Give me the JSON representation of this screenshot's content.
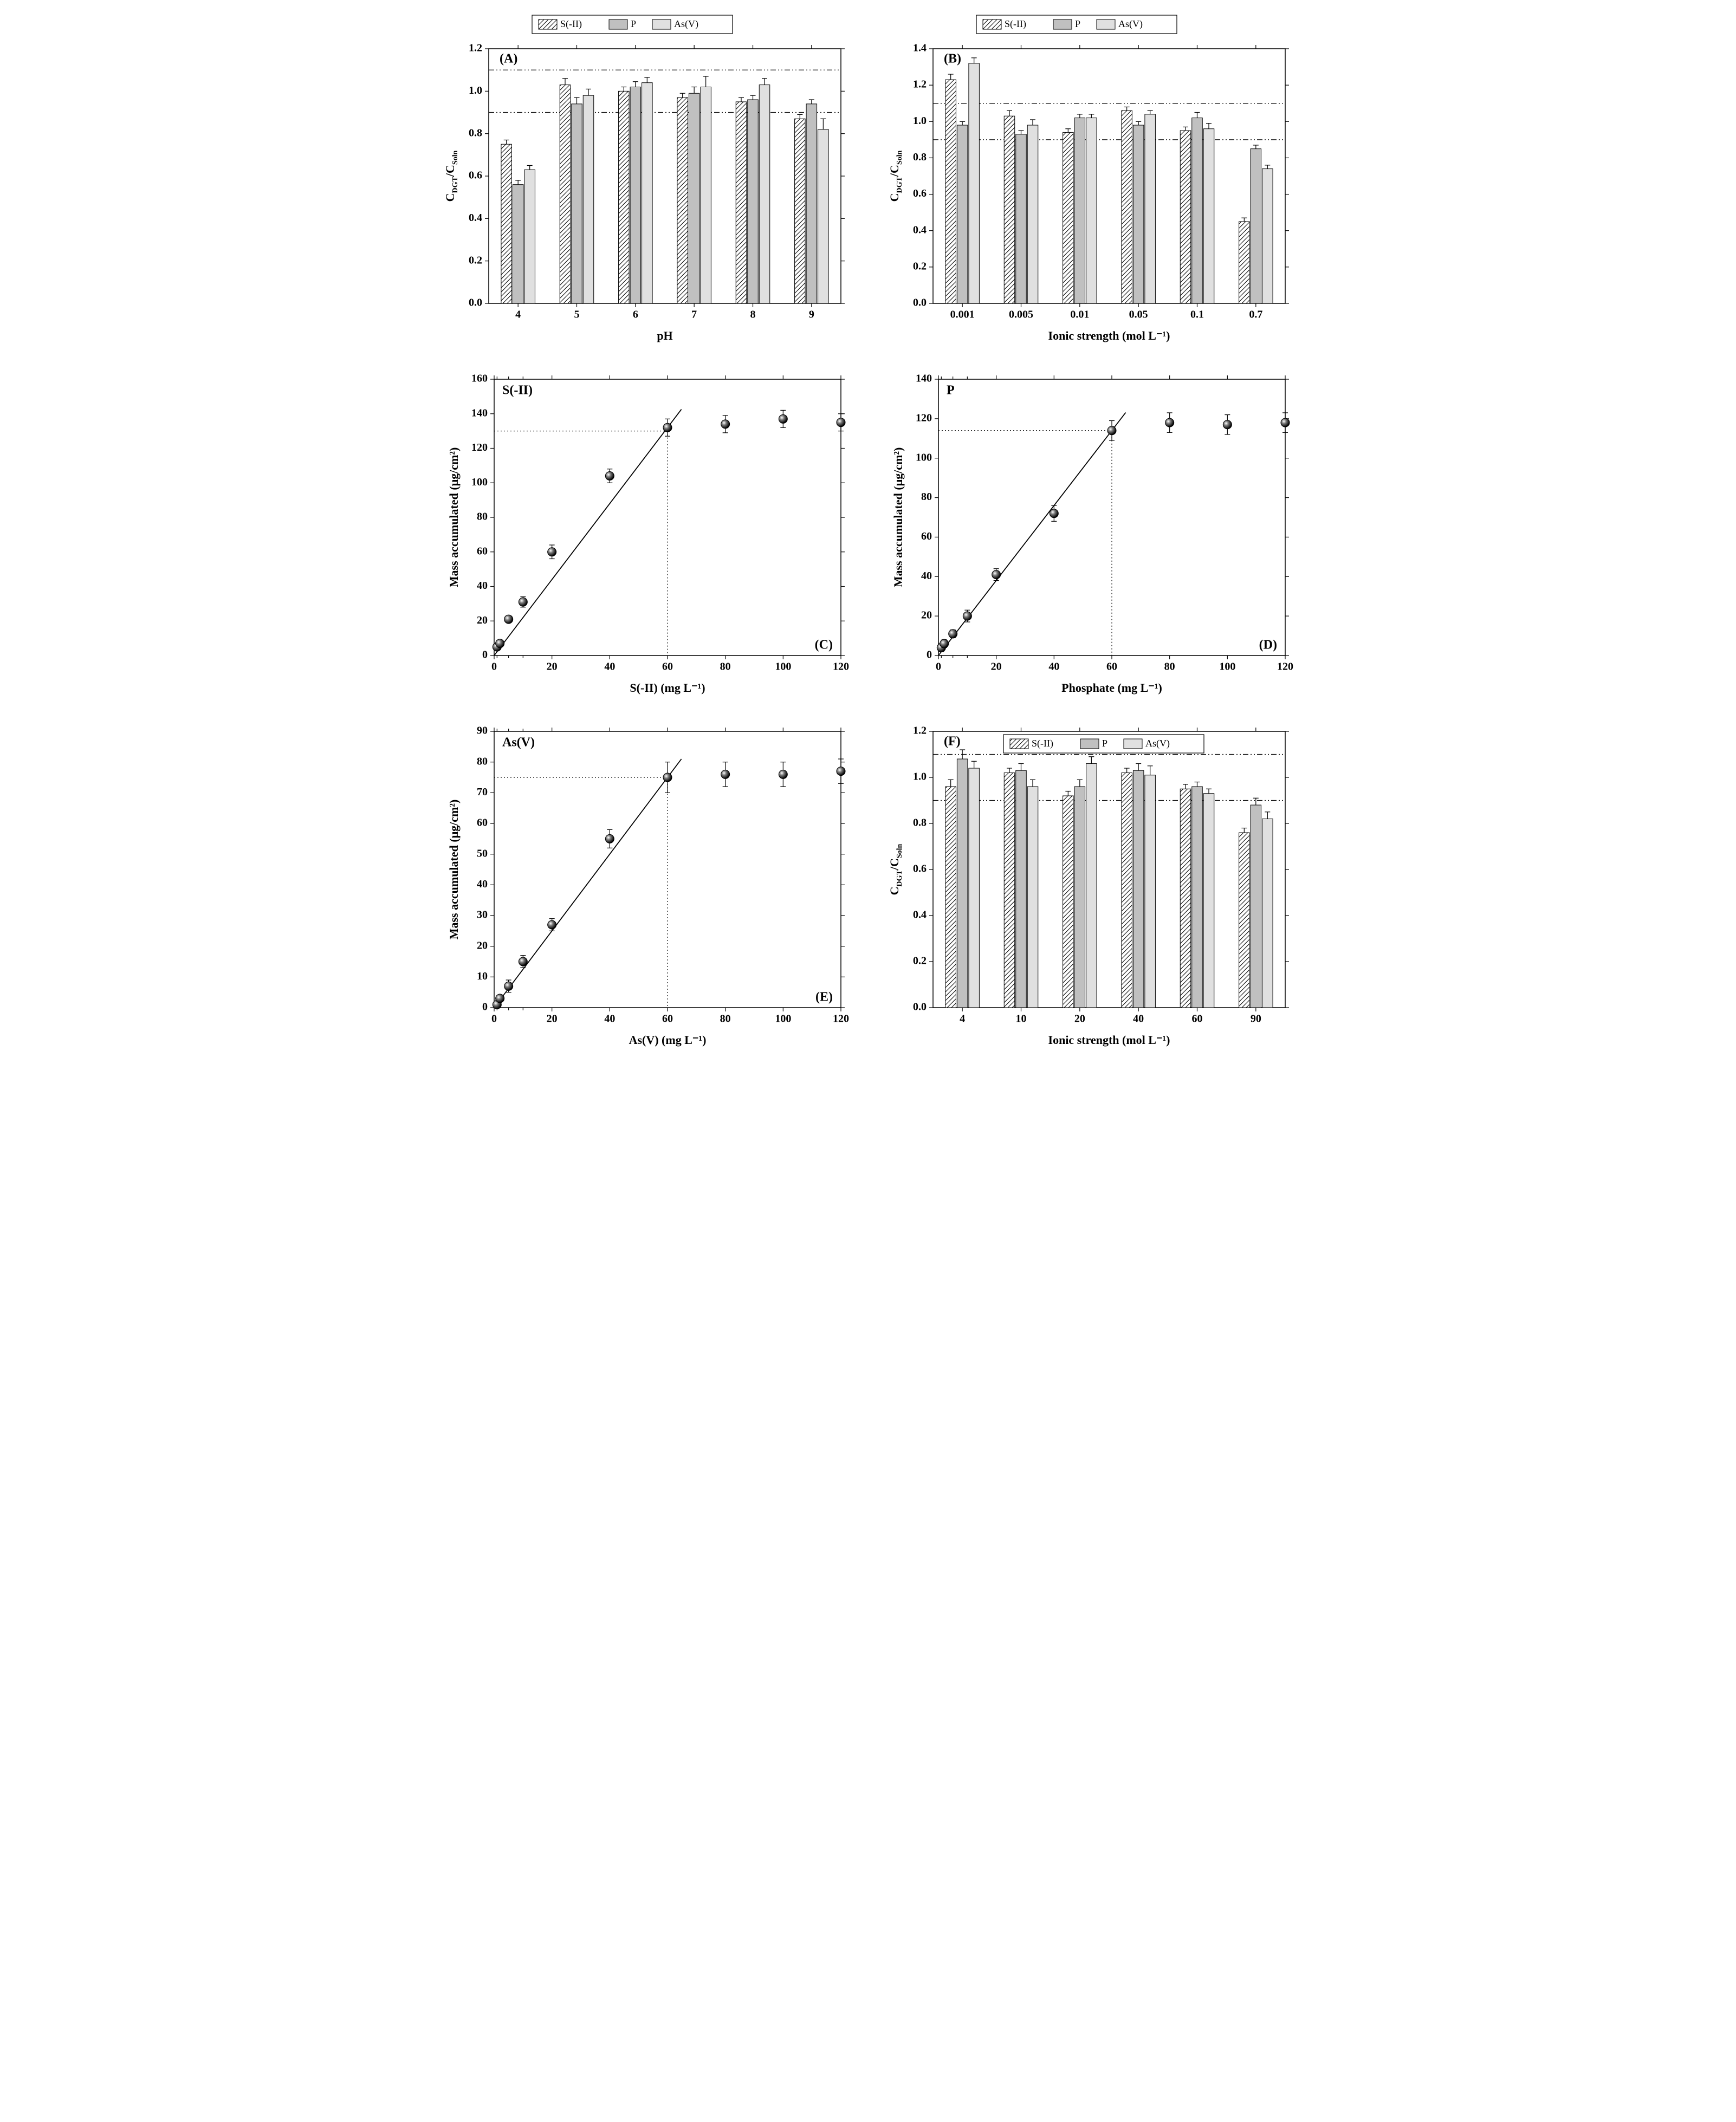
{
  "global": {
    "bg": "#ffffff",
    "stroke": "#000000",
    "series_labels": [
      "S(-II)",
      "P",
      "As(V)"
    ],
    "series_fills": [
      "#ffffff",
      "#c0c0c0",
      "#e0e0e0"
    ],
    "series_hatch": [
      true,
      false,
      false
    ],
    "ref_lines": [
      0.9,
      1.1
    ]
  },
  "panelA": {
    "tag": "(A)",
    "type": "bar_grouped",
    "xlabel": "pH",
    "ylabel": "C_DGT/C_Soln",
    "ylim": [
      0,
      1.2
    ],
    "ytick_step": 0.2,
    "categories": [
      "4",
      "5",
      "6",
      "7",
      "8",
      "9"
    ],
    "series": [
      {
        "name": "S(-II)",
        "values": [
          0.75,
          1.03,
          1.0,
          0.97,
          0.95,
          0.87
        ],
        "err": [
          0.02,
          0.03,
          0.02,
          0.02,
          0.02,
          0.02
        ]
      },
      {
        "name": "P",
        "values": [
          0.56,
          0.94,
          1.02,
          0.99,
          0.96,
          0.94
        ],
        "err": [
          0.02,
          0.03,
          0.025,
          0.03,
          0.02,
          0.02
        ]
      },
      {
        "name": "As(V)",
        "values": [
          0.63,
          0.98,
          1.04,
          1.02,
          1.03,
          0.82
        ],
        "err": [
          0.02,
          0.03,
          0.025,
          0.05,
          0.03,
          0.05
        ]
      }
    ],
    "bar_width": 0.18,
    "group_gap": 0.46,
    "legend_pos": "top-outside"
  },
  "panelB": {
    "tag": "(B)",
    "type": "bar_grouped",
    "xlabel": "Ionic strength (mol L⁻¹)",
    "ylabel": "C_DGT/C_Soln",
    "ylim": [
      0,
      1.4
    ],
    "ytick_step": 0.2,
    "categories": [
      "0.001",
      "0.005",
      "0.01",
      "0.05",
      "0.1",
      "0.7"
    ],
    "series": [
      {
        "name": "S(-II)",
        "values": [
          1.23,
          1.03,
          0.94,
          1.06,
          0.95,
          0.45
        ],
        "err": [
          0.03,
          0.03,
          0.02,
          0.02,
          0.02,
          0.02
        ]
      },
      {
        "name": "P",
        "values": [
          0.98,
          0.93,
          1.02,
          0.98,
          1.02,
          0.85
        ],
        "err": [
          0.02,
          0.02,
          0.02,
          0.02,
          0.03,
          0.02
        ]
      },
      {
        "name": "As(V)",
        "values": [
          1.32,
          0.98,
          1.02,
          1.04,
          0.96,
          0.74
        ],
        "err": [
          0.03,
          0.03,
          0.02,
          0.02,
          0.03,
          0.02
        ]
      }
    ],
    "bar_width": 0.18,
    "group_gap": 0.46,
    "legend_pos": "top-outside"
  },
  "panelC": {
    "tag": "(C)",
    "tag_pos": "br",
    "series_label": "S(-II)",
    "type": "scatter_line",
    "xlabel": "S(-II) (mg L⁻¹)",
    "ylabel": "Mass accumulated  (μg/cm²)",
    "xlim": [
      0,
      120
    ],
    "xticks": [
      0,
      20,
      40,
      60,
      80,
      100,
      120
    ],
    "xtick_minors": [
      1,
      5,
      10
    ],
    "ylim": [
      0,
      160
    ],
    "ytick_step": 20,
    "points": [
      {
        "x": 1,
        "y": 5,
        "err": 2
      },
      {
        "x": 2,
        "y": 7,
        "err": 2
      },
      {
        "x": 5,
        "y": 21,
        "err": 2
      },
      {
        "x": 10,
        "y": 31,
        "err": 3
      },
      {
        "x": 20,
        "y": 60,
        "err": 4
      },
      {
        "x": 40,
        "y": 104,
        "err": 4
      },
      {
        "x": 60,
        "y": 132,
        "err": 5
      },
      {
        "x": 80,
        "y": 134,
        "err": 5
      },
      {
        "x": 100,
        "y": 137,
        "err": 5
      },
      {
        "x": 120,
        "y": 135,
        "err": 5
      }
    ],
    "trend_upto_x": 60,
    "plateau_y": 130
  },
  "panelD": {
    "tag": "(D)",
    "tag_pos": "br",
    "series_label": "P",
    "type": "scatter_line",
    "xlabel": "Phosphate (mg L⁻¹)",
    "ylabel": "Mass accumulated  (μg/cm²)",
    "xlim": [
      0,
      120
    ],
    "xticks": [
      0,
      20,
      40,
      60,
      80,
      100,
      120
    ],
    "xtick_minors": [
      1,
      5,
      10
    ],
    "ylim": [
      0,
      140
    ],
    "ytick_step": 20,
    "points": [
      {
        "x": 1,
        "y": 4,
        "err": 2
      },
      {
        "x": 2,
        "y": 6,
        "err": 2
      },
      {
        "x": 5,
        "y": 11,
        "err": 2
      },
      {
        "x": 10,
        "y": 20,
        "err": 3
      },
      {
        "x": 20,
        "y": 41,
        "err": 3
      },
      {
        "x": 40,
        "y": 72,
        "err": 4
      },
      {
        "x": 60,
        "y": 114,
        "err": 5
      },
      {
        "x": 80,
        "y": 118,
        "err": 5
      },
      {
        "x": 100,
        "y": 117,
        "err": 5
      },
      {
        "x": 120,
        "y": 118,
        "err": 5
      }
    ],
    "trend_upto_x": 60,
    "plateau_y": 114
  },
  "panelE": {
    "tag": "(E)",
    "tag_pos": "br",
    "series_label": "As(V)",
    "type": "scatter_line",
    "xlabel": "As(V) (mg L⁻¹)",
    "ylabel": "Mass accumulated  (μg/cm²)",
    "xlim": [
      0,
      120
    ],
    "xticks": [
      0,
      20,
      40,
      60,
      80,
      100,
      120
    ],
    "xtick_minors": [
      1,
      5,
      10
    ],
    "ylim": [
      0,
      90
    ],
    "ytick_step": 10,
    "points": [
      {
        "x": 1,
        "y": 1,
        "err": 1
      },
      {
        "x": 2,
        "y": 3,
        "err": 1
      },
      {
        "x": 5,
        "y": 7,
        "err": 2
      },
      {
        "x": 10,
        "y": 15,
        "err": 2
      },
      {
        "x": 20,
        "y": 27,
        "err": 2
      },
      {
        "x": 40,
        "y": 55,
        "err": 3
      },
      {
        "x": 60,
        "y": 75,
        "err": 5
      },
      {
        "x": 80,
        "y": 76,
        "err": 4
      },
      {
        "x": 100,
        "y": 76,
        "err": 4
      },
      {
        "x": 120,
        "y": 77,
        "err": 4
      }
    ],
    "trend_upto_x": 60,
    "plateau_y": 75
  },
  "panelF": {
    "tag": "(F)",
    "type": "bar_grouped",
    "xlabel": "Ionic strength (mol L⁻¹)",
    "ylabel": "C_DGT/C_Soln",
    "ylim": [
      0,
      1.2
    ],
    "ytick_step": 0.2,
    "categories": [
      "4",
      "10",
      "20",
      "40",
      "60",
      "90"
    ],
    "series": [
      {
        "name": "S(-II)",
        "values": [
          0.96,
          1.02,
          0.92,
          1.02,
          0.95,
          0.76
        ],
        "err": [
          0.03,
          0.02,
          0.02,
          0.02,
          0.02,
          0.02
        ]
      },
      {
        "name": "P",
        "values": [
          1.08,
          1.03,
          0.96,
          1.03,
          0.96,
          0.88
        ],
        "err": [
          0.04,
          0.03,
          0.03,
          0.03,
          0.02,
          0.03
        ]
      },
      {
        "name": "As(V)",
        "values": [
          1.04,
          0.96,
          1.06,
          1.01,
          0.93,
          0.82
        ],
        "err": [
          0.03,
          0.03,
          0.03,
          0.04,
          0.02,
          0.03
        ]
      }
    ],
    "bar_width": 0.18,
    "group_gap": 0.46,
    "legend_pos": "top-inside"
  }
}
